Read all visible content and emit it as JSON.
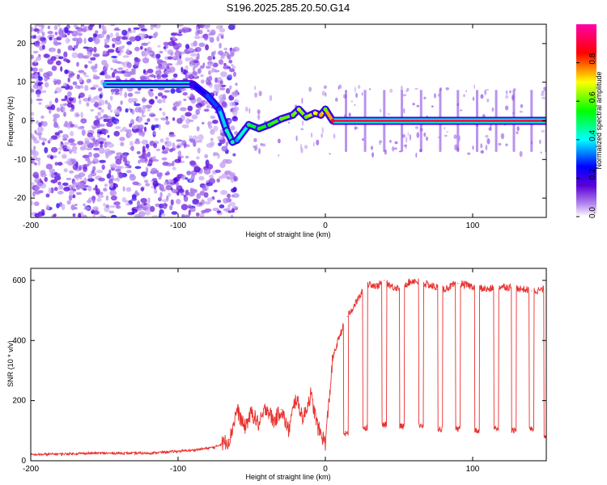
{
  "title": "S196.2025.285.20.50.G14",
  "chart_data": [
    {
      "type": "heatmap",
      "name": "spectrogram",
      "xlabel": "Height of straight line (km)",
      "ylabel": "Frequency (Hz)",
      "xlim": [
        -200,
        150
      ],
      "ylim": [
        -25,
        25
      ],
      "x_ticks": [
        -200,
        -100,
        0,
        100
      ],
      "y_ticks": [
        -20,
        -10,
        0,
        10,
        20
      ],
      "ridge_points": [
        {
          "x": -150,
          "y": 9.5,
          "amp": 0.35
        },
        {
          "x": -90,
          "y": 9.5,
          "amp": 0.2
        },
        {
          "x": -80,
          "y": 6.5,
          "amp": 0.3
        },
        {
          "x": -72,
          "y": 3.0,
          "amp": 0.3
        },
        {
          "x": -67,
          "y": -2.5,
          "amp": 0.45
        },
        {
          "x": -63,
          "y": -5.5,
          "amp": 0.45
        },
        {
          "x": -60,
          "y": -5.0,
          "amp": 0.35
        },
        {
          "x": -52,
          "y": -1.0,
          "amp": 0.5
        },
        {
          "x": -45,
          "y": -2.0,
          "amp": 0.55
        },
        {
          "x": -38,
          "y": -1.0,
          "amp": 0.55
        },
        {
          "x": -30,
          "y": 0.5,
          "amp": 0.6
        },
        {
          "x": -22,
          "y": 1.5,
          "amp": 0.6
        },
        {
          "x": -18,
          "y": 3.0,
          "amp": 0.65
        },
        {
          "x": -13,
          "y": 1.0,
          "amp": 0.6
        },
        {
          "x": -7,
          "y": 2.0,
          "amp": 0.7
        },
        {
          "x": -3,
          "y": 1.5,
          "amp": 0.75
        },
        {
          "x": 0,
          "y": 3.0,
          "amp": 0.6
        },
        {
          "x": 5,
          "y": 0.0,
          "amp": 0.9
        },
        {
          "x": 150,
          "y": 0.0,
          "amp": 0.9
        }
      ],
      "colorbar": {
        "label": "Normalized spectral amplitude",
        "range": [
          0,
          1
        ],
        "ticks": [
          "0.0",
          "0.2",
          "0.4",
          "0.6",
          "0.8"
        ],
        "colors": [
          "#ffffff",
          "#b990f0",
          "#5b00d6",
          "#0000ff",
          "#00ffff",
          "#00ff00",
          "#ffff00",
          "#ff0000",
          "#ff00aa"
        ]
      }
    },
    {
      "type": "line",
      "name": "snr",
      "xlabel": "Height of straight line (km)",
      "ylabel": "SNR (10 * v/v)",
      "xlim": [
        -200,
        150
      ],
      "ylim": [
        0,
        640
      ],
      "x_ticks": [
        -200,
        -100,
        0,
        100
      ],
      "y_ticks": [
        0,
        200,
        400,
        600
      ],
      "color": "#e8302d",
      "x": [
        -200,
        -160,
        -120,
        -90,
        -75,
        -65,
        -60,
        -55,
        -50,
        -45,
        -40,
        -35,
        -30,
        -25,
        -20,
        -15,
        -10,
        -5,
        0,
        5,
        10,
        15,
        20,
        25,
        30,
        35,
        40,
        45,
        50,
        55,
        60,
        70,
        80,
        90,
        100,
        110,
        120,
        130,
        140,
        150
      ],
      "y": [
        20,
        25,
        25,
        35,
        45,
        70,
        170,
        110,
        160,
        120,
        180,
        130,
        170,
        100,
        210,
        140,
        220,
        110,
        60,
        340,
        420,
        480,
        520,
        560,
        590,
        580,
        600,
        580,
        575,
        590,
        600,
        585,
        570,
        590,
        580,
        570,
        580,
        575,
        565,
        570
      ],
      "dropouts": [
        {
          "x": 14,
          "y": 90
        },
        {
          "x": 27,
          "y": 110
        },
        {
          "x": 40,
          "y": 120
        },
        {
          "x": 52,
          "y": 115
        },
        {
          "x": 65,
          "y": 115
        },
        {
          "x": 78,
          "y": 105
        },
        {
          "x": 90,
          "y": 105
        },
        {
          "x": 103,
          "y": 100
        },
        {
          "x": 116,
          "y": 105
        },
        {
          "x": 128,
          "y": 100
        },
        {
          "x": 140,
          "y": 105
        },
        {
          "x": 150,
          "y": 85
        }
      ]
    }
  ]
}
